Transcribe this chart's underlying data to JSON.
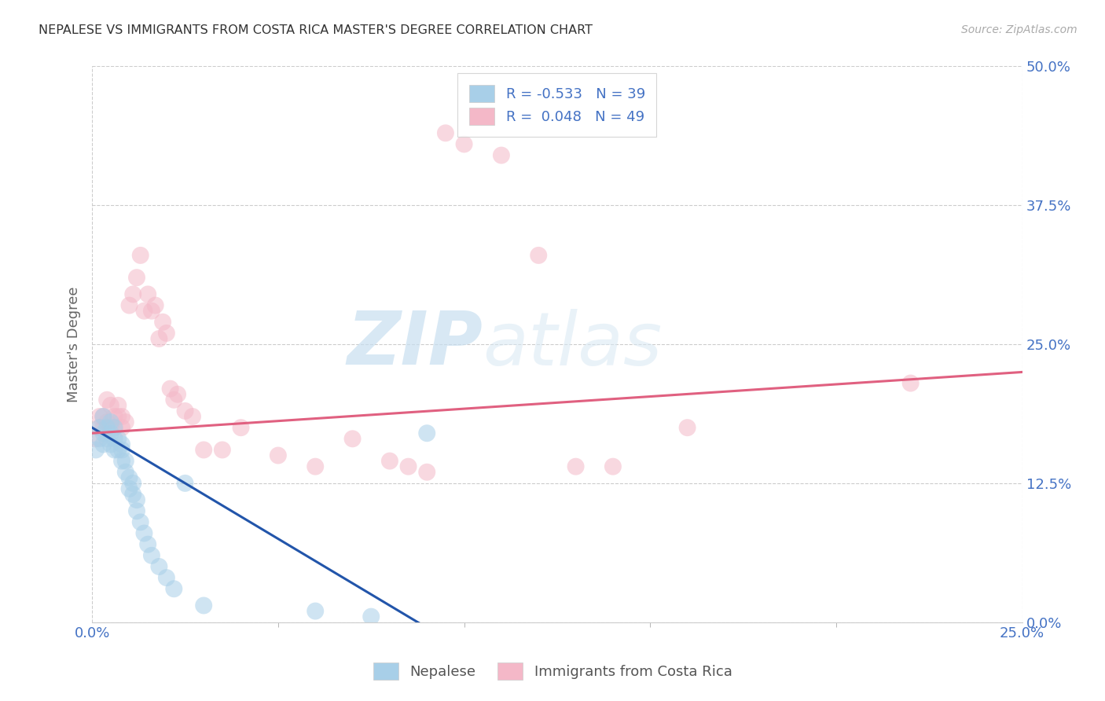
{
  "title": "NEPALESE VS IMMIGRANTS FROM COSTA RICA MASTER'S DEGREE CORRELATION CHART",
  "source": "Source: ZipAtlas.com",
  "ylabel": "Master's Degree",
  "xlim": [
    0.0,
    0.25
  ],
  "ylim": [
    0.0,
    0.5
  ],
  "legend_label1": "Nepalese",
  "legend_label2": "Immigrants from Costa Rica",
  "r1": -0.533,
  "n1": 39,
  "r2": 0.048,
  "n2": 49,
  "color_blue": "#a8cfe8",
  "color_pink": "#f4b8c8",
  "color_blue_dark": "#2255aa",
  "color_pink_dark": "#e06080",
  "watermark_zip": "ZIP",
  "watermark_atlas": "atlas",
  "blue_slope": -2.0,
  "blue_intercept": 0.175,
  "pink_slope": 0.22,
  "pink_intercept": 0.17,
  "blue_points_x": [
    0.001,
    0.002,
    0.002,
    0.003,
    0.003,
    0.003,
    0.004,
    0.004,
    0.005,
    0.005,
    0.005,
    0.006,
    0.006,
    0.006,
    0.007,
    0.007,
    0.008,
    0.008,
    0.008,
    0.009,
    0.009,
    0.01,
    0.01,
    0.011,
    0.011,
    0.012,
    0.012,
    0.013,
    0.014,
    0.015,
    0.016,
    0.018,
    0.02,
    0.022,
    0.025,
    0.03,
    0.06,
    0.075,
    0.09
  ],
  "blue_points_y": [
    0.155,
    0.175,
    0.165,
    0.185,
    0.17,
    0.16,
    0.175,
    0.165,
    0.18,
    0.17,
    0.16,
    0.175,
    0.165,
    0.155,
    0.155,
    0.165,
    0.155,
    0.145,
    0.16,
    0.145,
    0.135,
    0.13,
    0.12,
    0.115,
    0.125,
    0.11,
    0.1,
    0.09,
    0.08,
    0.07,
    0.06,
    0.05,
    0.04,
    0.03,
    0.125,
    0.015,
    0.01,
    0.005,
    0.17
  ],
  "pink_points_x": [
    0.001,
    0.002,
    0.002,
    0.003,
    0.003,
    0.004,
    0.004,
    0.005,
    0.005,
    0.006,
    0.006,
    0.007,
    0.007,
    0.008,
    0.008,
    0.009,
    0.01,
    0.011,
    0.012,
    0.013,
    0.014,
    0.015,
    0.016,
    0.017,
    0.018,
    0.019,
    0.02,
    0.021,
    0.022,
    0.023,
    0.025,
    0.027,
    0.03,
    0.035,
    0.04,
    0.05,
    0.06,
    0.07,
    0.08,
    0.085,
    0.09,
    0.095,
    0.1,
    0.11,
    0.12,
    0.13,
    0.14,
    0.16,
    0.22
  ],
  "pink_points_y": [
    0.165,
    0.185,
    0.175,
    0.185,
    0.175,
    0.2,
    0.18,
    0.195,
    0.175,
    0.185,
    0.175,
    0.185,
    0.195,
    0.185,
    0.175,
    0.18,
    0.285,
    0.295,
    0.31,
    0.33,
    0.28,
    0.295,
    0.28,
    0.285,
    0.255,
    0.27,
    0.26,
    0.21,
    0.2,
    0.205,
    0.19,
    0.185,
    0.155,
    0.155,
    0.175,
    0.15,
    0.14,
    0.165,
    0.145,
    0.14,
    0.135,
    0.44,
    0.43,
    0.42,
    0.33,
    0.14,
    0.14,
    0.175,
    0.215
  ]
}
